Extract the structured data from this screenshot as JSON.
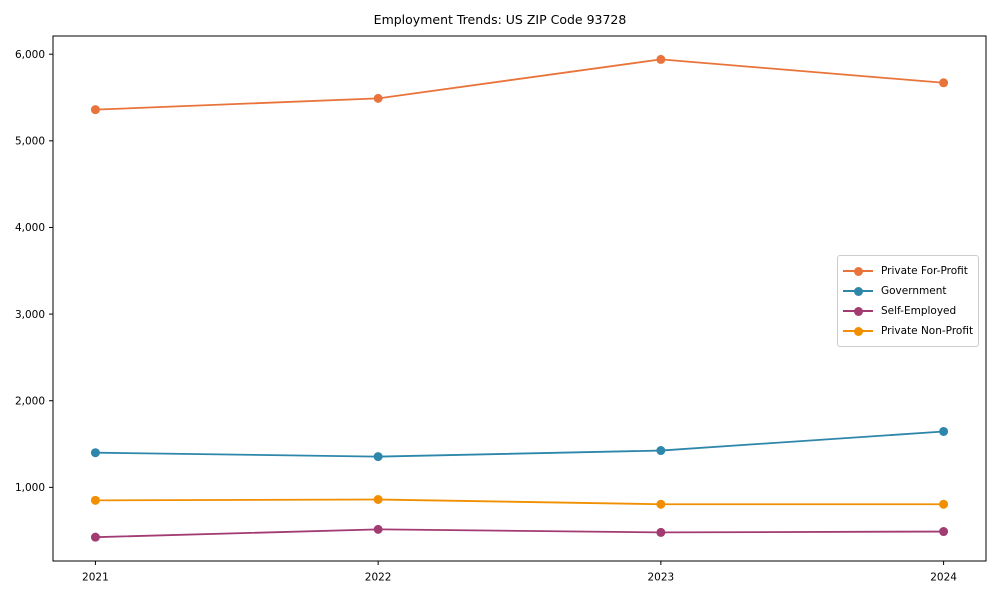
{
  "chart_data": {
    "type": "line",
    "title": "Employment Trends: US ZIP Code 93728",
    "xlabel": "",
    "ylabel": "",
    "x": [
      2021,
      2022,
      2023,
      2024
    ],
    "x_tick_labels": [
      "2021",
      "2022",
      "2023",
      "2024"
    ],
    "y_ticks": [
      1000,
      2000,
      3000,
      4000,
      5000,
      6000
    ],
    "y_tick_labels": [
      "1,000",
      "2,000",
      "3,000",
      "4,000",
      "5,000",
      "6,000"
    ],
    "xlim": [
      2020.85,
      2024.15
    ],
    "ylim": [
      150,
      6210
    ],
    "grid": false,
    "legend_position": "center right",
    "axis_color": "#000000",
    "tick_label_color": "#000000",
    "series": [
      {
        "name": "Private For-Profit",
        "color": "#E8743B",
        "values": [
          5360,
          5490,
          5940,
          5670
        ]
      },
      {
        "name": "Government",
        "color": "#2E86AB",
        "values": [
          1400,
          1355,
          1425,
          1645
        ]
      },
      {
        "name": "Self-Employed",
        "color": "#A23B72",
        "values": [
          425,
          515,
          480,
          490
        ]
      },
      {
        "name": "Private Non-Profit",
        "color": "#F18F01",
        "values": [
          850,
          860,
          805,
          805
        ]
      }
    ]
  }
}
